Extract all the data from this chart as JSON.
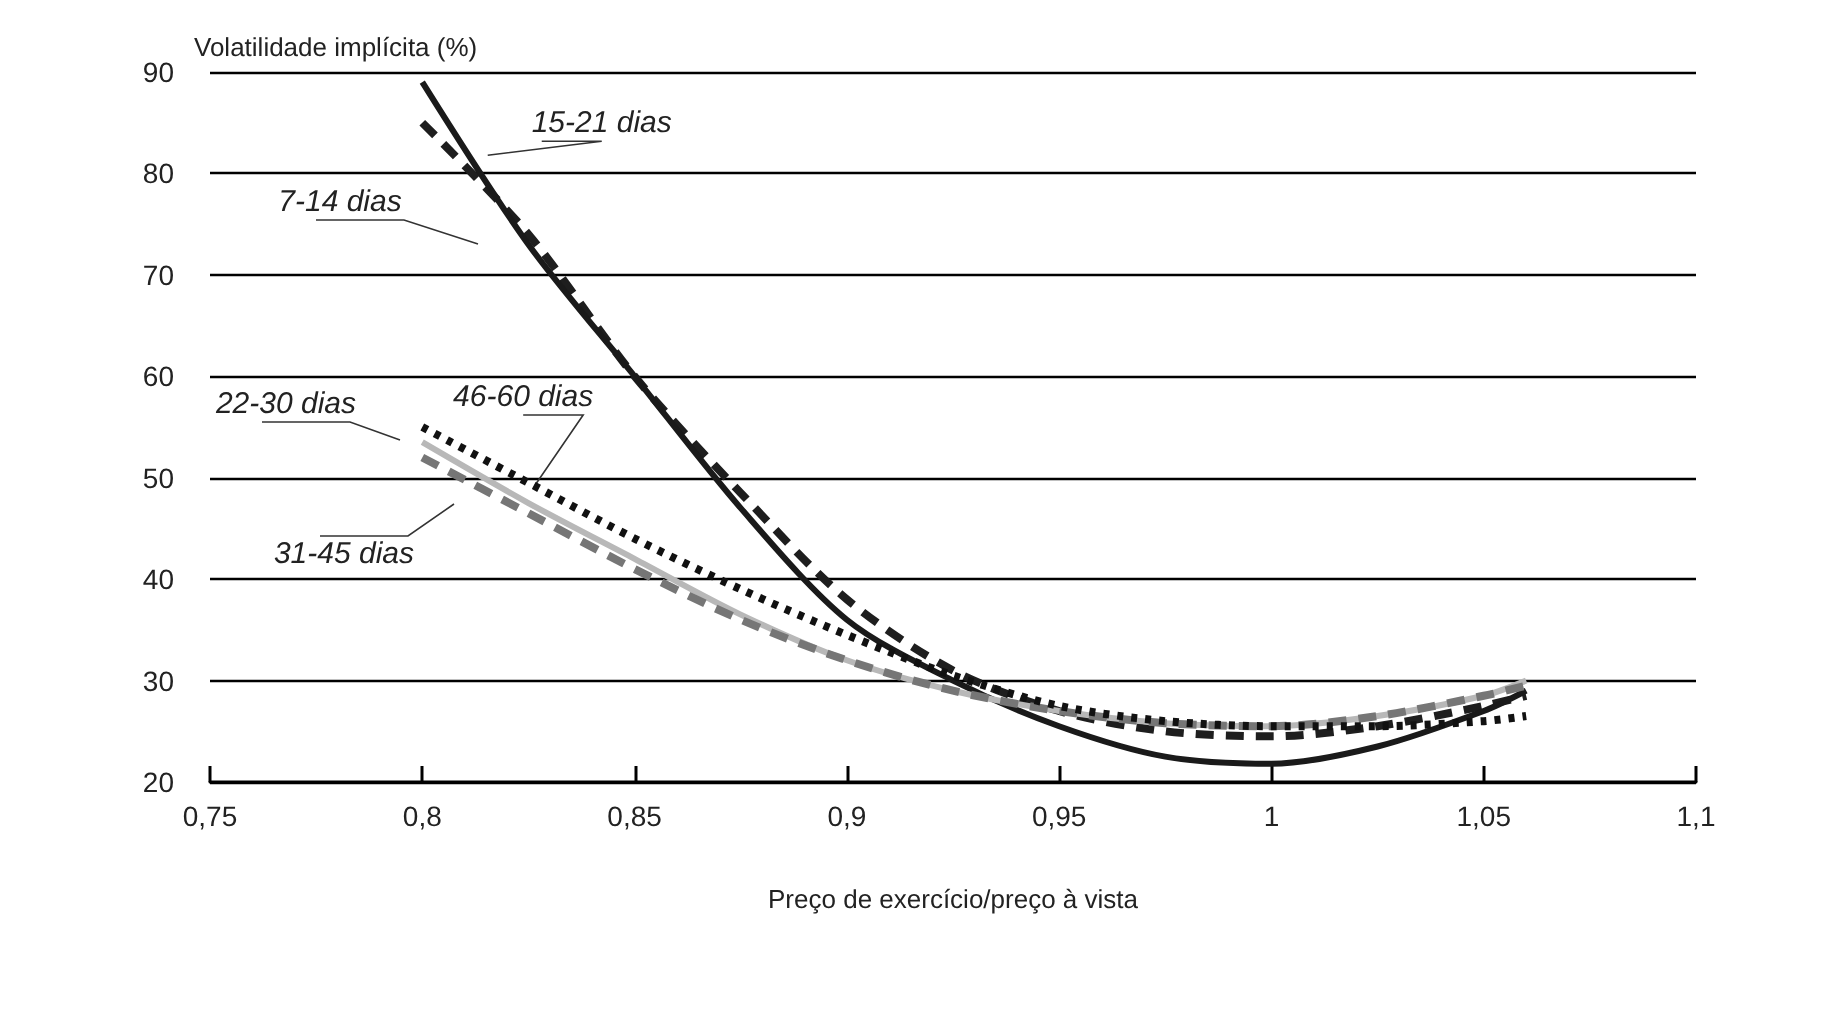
{
  "chart_data": {
    "type": "line",
    "xlabel": "Preço de exercício/preço à vista",
    "ylabel": "Volatilidade implícita (%)",
    "x": [
      0.8,
      0.825,
      0.85,
      0.875,
      0.9,
      0.925,
      0.95,
      0.975,
      1.0,
      1.025,
      1.05,
      1.06
    ],
    "series": [
      {
        "color": "#1e1e1e",
        "line_style": "dashed",
        "values": [
          85,
          74,
          60,
          48.5,
          38,
          31,
          27,
          25,
          24.5,
          25.5,
          27.5,
          28.5
        ]
      },
      {
        "color": "#1a1a1a",
        "line_style": "solid",
        "values": [
          89,
          73,
          60,
          47,
          36,
          30,
          25.5,
          22.5,
          21.8,
          23.5,
          27,
          29
        ]
      },
      {
        "color": "#b8b8b8",
        "line_style": "solid",
        "values": [
          53.5,
          47.5,
          42,
          36.5,
          32,
          29,
          27,
          25.8,
          25.5,
          26.5,
          28.5,
          30
        ]
      },
      {
        "color": "#767676",
        "line_style": "dashed",
        "values": [
          52,
          46.5,
          41,
          36,
          32,
          29,
          27,
          25.8,
          25.5,
          26.5,
          28.5,
          29.5
        ]
      },
      {
        "color": "#111111",
        "line_style": "dotted",
        "values": [
          55,
          49.5,
          44,
          39,
          34.5,
          30.5,
          27.5,
          26,
          25.5,
          25.5,
          26,
          26.5
        ]
      }
    ],
    "annotations": [
      {
        "text": "15-21 dias",
        "x": 0.814,
        "y": 81
      },
      "7-14 dias",
      "22-30 dias",
      {
        "text": "46-60 dias",
        "x": 0.828,
        "y": 48.5
      },
      "31-45 dias"
    ],
    "xlim": [
      0.75,
      1.1
    ],
    "xticks": [
      {
        "value": 0.75,
        "label": "0,75"
      },
      {
        "value": 0.8,
        "label": "0,8"
      },
      {
        "value": 0.85,
        "label": "0,85"
      },
      {
        "value": 0.9,
        "label": "0,9"
      },
      {
        "value": 0.95,
        "label": "0,95"
      },
      {
        "value": 1,
        "label": "1"
      },
      {
        "value": 1.05,
        "label": "1,05"
      },
      {
        "value": 1.1,
        "label": "1,1"
      }
    ],
    "ylim": [
      20,
      90
    ],
    "yticks": [
      20,
      30,
      40,
      50,
      60,
      70,
      80,
      90
    ],
    "grid": "y",
    "marker": "none"
  }
}
